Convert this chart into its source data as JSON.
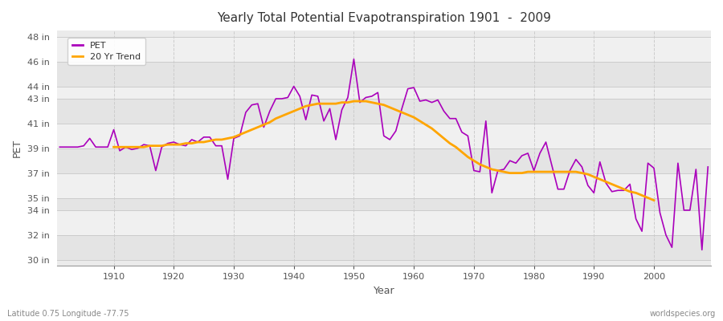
{
  "title": "Yearly Total Potential Evapotranspiration 1901  -  2009",
  "xlabel": "Year",
  "ylabel": "PET",
  "bottom_left_label": "Latitude 0.75 Longitude -77.75",
  "bottom_right_label": "worldspecies.org",
  "pet_color": "#AA00BB",
  "trend_color": "#FFA500",
  "bg_color": "#FFFFFF",
  "plot_bg_color": "#EBEBEB",
  "band_color_light": "#F0F0F0",
  "band_color_dark": "#E4E4E4",
  "grid_color": "#CCCCCC",
  "ylim": [
    29.5,
    48.5
  ],
  "yticks": [
    30,
    32,
    34,
    35,
    37,
    39,
    41,
    43,
    44,
    46,
    48
  ],
  "xlim": [
    1900.5,
    2009.5
  ],
  "xticks": [
    1910,
    1920,
    1930,
    1940,
    1950,
    1960,
    1970,
    1980,
    1990,
    2000
  ],
  "years": [
    1901,
    1902,
    1903,
    1904,
    1905,
    1906,
    1907,
    1908,
    1909,
    1910,
    1911,
    1912,
    1913,
    1914,
    1915,
    1916,
    1917,
    1918,
    1919,
    1920,
    1921,
    1922,
    1923,
    1924,
    1925,
    1926,
    1927,
    1928,
    1929,
    1930,
    1931,
    1932,
    1933,
    1934,
    1935,
    1936,
    1937,
    1938,
    1939,
    1940,
    1941,
    1942,
    1943,
    1944,
    1945,
    1946,
    1947,
    1948,
    1949,
    1950,
    1951,
    1952,
    1953,
    1954,
    1955,
    1956,
    1957,
    1958,
    1959,
    1960,
    1961,
    1962,
    1963,
    1964,
    1965,
    1966,
    1967,
    1968,
    1969,
    1970,
    1971,
    1972,
    1973,
    1974,
    1975,
    1976,
    1977,
    1978,
    1979,
    1980,
    1981,
    1982,
    1983,
    1984,
    1985,
    1986,
    1987,
    1988,
    1989,
    1990,
    1991,
    1992,
    1993,
    1994,
    1995,
    1996,
    1997,
    1998,
    1999,
    2000,
    2001,
    2002,
    2003,
    2004,
    2005,
    2006,
    2007,
    2008,
    2009
  ],
  "pet": [
    39.1,
    39.1,
    39.1,
    39.1,
    39.2,
    39.8,
    39.1,
    39.1,
    39.1,
    40.5,
    38.8,
    39.1,
    38.9,
    39.0,
    39.3,
    39.2,
    37.2,
    39.1,
    39.4,
    39.5,
    39.3,
    39.2,
    39.7,
    39.5,
    39.9,
    39.9,
    39.2,
    39.2,
    36.5,
    39.8,
    40.0,
    41.9,
    42.5,
    42.6,
    40.7,
    42.0,
    43.0,
    43.0,
    43.1,
    44.0,
    43.2,
    41.3,
    43.3,
    43.2,
    41.2,
    42.2,
    39.7,
    42.1,
    43.1,
    46.2,
    42.7,
    43.1,
    43.2,
    43.5,
    40.0,
    39.7,
    40.4,
    42.2,
    43.8,
    43.9,
    42.8,
    42.9,
    42.7,
    42.9,
    42.0,
    41.4,
    41.4,
    40.3,
    40.0,
    37.2,
    37.1,
    41.2,
    35.4,
    37.2,
    37.3,
    38.0,
    37.8,
    38.4,
    38.6,
    37.2,
    38.6,
    39.5,
    37.6,
    35.7,
    35.7,
    37.2,
    38.1,
    37.5,
    36.0,
    35.4,
    37.9,
    36.2,
    35.5,
    35.6,
    35.6,
    36.1,
    33.3,
    32.3,
    37.8,
    37.4,
    33.8,
    32.0,
    31.0,
    37.8,
    34.0,
    34.0,
    37.3,
    30.8,
    37.5
  ],
  "trend_years": [
    1910,
    1911,
    1912,
    1913,
    1914,
    1915,
    1916,
    1917,
    1918,
    1919,
    1920,
    1921,
    1922,
    1923,
    1924,
    1925,
    1926,
    1927,
    1928,
    1929,
    1930,
    1931,
    1932,
    1933,
    1934,
    1935,
    1936,
    1937,
    1938,
    1939,
    1940,
    1941,
    1942,
    1943,
    1944,
    1945,
    1946,
    1947,
    1948,
    1949,
    1950,
    1951,
    1952,
    1953,
    1954,
    1955,
    1956,
    1957,
    1958,
    1959,
    1960,
    1961,
    1962,
    1963,
    1964,
    1965,
    1966,
    1967,
    1968,
    1969,
    1970,
    1971,
    1972,
    1973,
    1974,
    1975,
    1976,
    1977,
    1978,
    1979,
    1980,
    1981,
    1982,
    1983,
    1984,
    1985,
    1986,
    1987,
    1988,
    1989,
    1990,
    1991,
    1992,
    1993,
    1994,
    1995,
    1996,
    1997,
    1998,
    1999,
    2000
  ],
  "trend": [
    39.1,
    39.1,
    39.1,
    39.1,
    39.1,
    39.1,
    39.2,
    39.2,
    39.2,
    39.3,
    39.3,
    39.3,
    39.4,
    39.4,
    39.5,
    39.5,
    39.6,
    39.7,
    39.7,
    39.8,
    39.9,
    40.1,
    40.3,
    40.5,
    40.7,
    40.9,
    41.1,
    41.4,
    41.6,
    41.8,
    42.0,
    42.2,
    42.4,
    42.5,
    42.6,
    42.6,
    42.6,
    42.6,
    42.7,
    42.7,
    42.8,
    42.8,
    42.8,
    42.7,
    42.6,
    42.5,
    42.3,
    42.1,
    41.9,
    41.7,
    41.5,
    41.2,
    40.9,
    40.6,
    40.2,
    39.8,
    39.4,
    39.1,
    38.7,
    38.3,
    38.0,
    37.7,
    37.5,
    37.3,
    37.2,
    37.1,
    37.0,
    37.0,
    37.0,
    37.1,
    37.1,
    37.1,
    37.1,
    37.1,
    37.1,
    37.1,
    37.1,
    37.1,
    37.0,
    36.9,
    36.7,
    36.5,
    36.3,
    36.1,
    35.9,
    35.7,
    35.5,
    35.4,
    35.2,
    35.0,
    34.8
  ]
}
